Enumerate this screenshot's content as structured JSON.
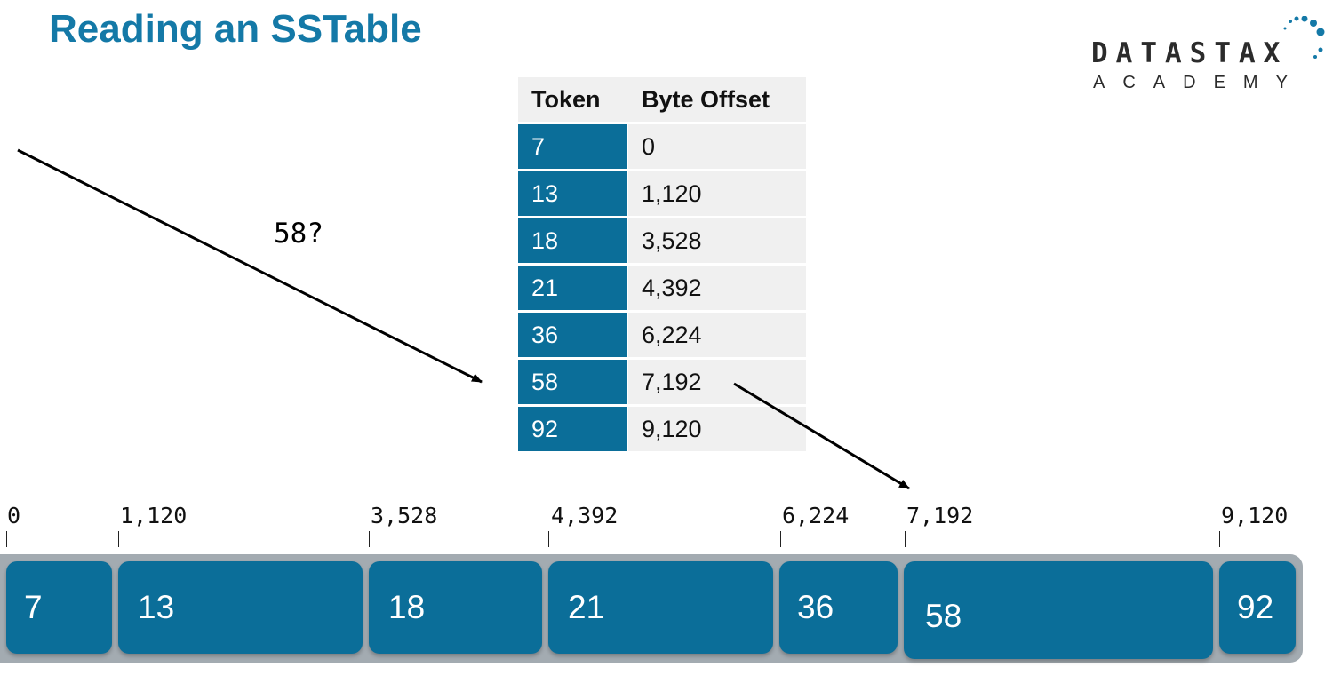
{
  "title": "Reading an SSTable",
  "logo": {
    "line1": "DATASTAX",
    "line2": "ACADEMY"
  },
  "index_table": {
    "headers": [
      "Token",
      "Byte Offset"
    ],
    "rows": [
      {
        "token": "7",
        "offset": "0"
      },
      {
        "token": "13",
        "offset": "1,120"
      },
      {
        "token": "18",
        "offset": "3,528"
      },
      {
        "token": "21",
        "offset": "4,392"
      },
      {
        "token": "36",
        "offset": "6,224"
      },
      {
        "token": "58",
        "offset": "7,192"
      },
      {
        "token": "92",
        "offset": "9,120"
      }
    ]
  },
  "query_label": "58?",
  "offsets": [
    "0",
    "1,120",
    "3,528",
    "4,392",
    "6,224",
    "7,192",
    "9,120"
  ],
  "partitions": [
    "7",
    "13",
    "18",
    "21",
    "36",
    "58",
    "92"
  ],
  "colors": {
    "title": "#1479a7",
    "block": "#0b6e99",
    "track": "#a3abb1",
    "header_bg": "#f0f0f0"
  }
}
